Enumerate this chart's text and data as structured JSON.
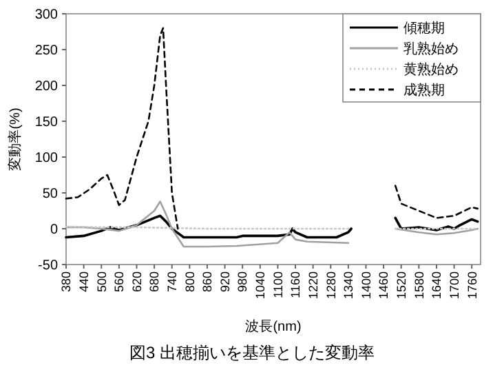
{
  "chart_data": {
    "type": "line",
    "title": "図3 出穂揃いを基準とした変動率",
    "xlabel": "波長(nm)",
    "ylabel": "変動率(%)",
    "xlim": [
      380,
      1790
    ],
    "xticks": [
      380,
      440,
      500,
      560,
      620,
      680,
      740,
      800,
      860,
      920,
      980,
      1040,
      1100,
      1160,
      1220,
      1280,
      1340,
      1400,
      1460,
      1520,
      1580,
      1640,
      1700,
      1760
    ],
    "ylim": [
      -50,
      300
    ],
    "yticks": [
      -50,
      0,
      50,
      100,
      150,
      200,
      250,
      300
    ],
    "legend": "top right",
    "grid": false,
    "series": [
      {
        "name": "傾穂期",
        "color": "#000000",
        "line_style": "solid",
        "x": [
          380,
          440,
          500,
          530,
          560,
          620,
          680,
          700,
          720,
          740,
          780,
          860,
          960,
          980,
          1100,
          1140,
          1150,
          1160,
          1200,
          1300,
          1340,
          1350,
          1400,
          1500,
          1520,
          1580,
          1640,
          1680,
          1700,
          1720,
          1760,
          1780
        ],
        "values": [
          -12,
          -10,
          -3,
          2,
          -2,
          5,
          15,
          18,
          10,
          0,
          -12,
          -12,
          -12,
          -10,
          -10,
          -8,
          0,
          -5,
          -12,
          -12,
          -5,
          0,
          null,
          15,
          0,
          2,
          -2,
          3,
          0,
          5,
          13,
          10
        ]
      },
      {
        "name": "乳熟始め",
        "color": "#a0a0a0",
        "line_style": "solid",
        "x": [
          380,
          440,
          500,
          560,
          620,
          680,
          700,
          720,
          740,
          780,
          860,
          960,
          1100,
          1140,
          1160,
          1200,
          1340,
          1400,
          1500,
          1580,
          1640,
          1700,
          1760,
          1780
        ],
        "values": [
          2,
          2,
          0,
          -3,
          5,
          25,
          38,
          20,
          0,
          -25,
          -25,
          -24,
          -20,
          -5,
          -15,
          -18,
          -20,
          null,
          0,
          -5,
          -8,
          -6,
          -2,
          0
        ]
      },
      {
        "name": "黄熟始め",
        "color": "#c8c8c8",
        "line_style": "dotted",
        "x": [
          380,
          500,
          620,
          740,
          860,
          980,
          1100,
          1220,
          1340,
          1400,
          1500,
          1620,
          1780
        ],
        "values": [
          3,
          2,
          2,
          1,
          0,
          0,
          0,
          0,
          0,
          null,
          0,
          0,
          0
        ]
      },
      {
        "name": "成熟期",
        "color": "#000000",
        "line_style": "dashed",
        "x": [
          380,
          420,
          460,
          500,
          520,
          540,
          560,
          580,
          620,
          660,
          680,
          700,
          710,
          720,
          740,
          760,
          780,
          1500,
          1520,
          1580,
          1640,
          1700,
          1760,
          1780
        ],
        "values": [
          42,
          44,
          55,
          70,
          75,
          55,
          33,
          40,
          100,
          150,
          200,
          270,
          280,
          200,
          50,
          0,
          null,
          60,
          35,
          25,
          15,
          18,
          30,
          28
        ]
      }
    ]
  }
}
